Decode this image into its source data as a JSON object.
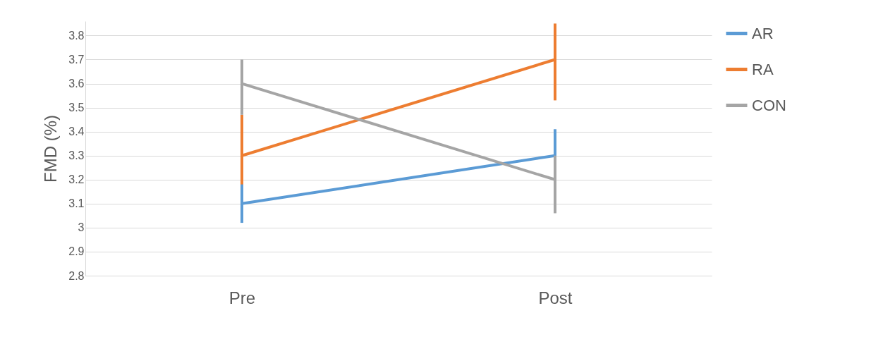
{
  "chart_data": {
    "type": "line",
    "ylabel": "FMD (%)",
    "categories": [
      "Pre",
      "Post"
    ],
    "series": [
      {
        "name": "AR",
        "color": "#5b9bd5",
        "values": [
          3.1,
          3.3
        ],
        "errors": [
          [
            3.02,
            3.2
          ],
          [
            3.2,
            3.41
          ]
        ]
      },
      {
        "name": "RA",
        "color": "#ed7d31",
        "values": [
          3.3,
          3.7
        ],
        "errors": [
          [
            3.18,
            3.47
          ],
          [
            3.53,
            3.85
          ]
        ]
      },
      {
        "name": "CON",
        "color": "#a5a5a5",
        "values": [
          3.6,
          3.2
        ],
        "errors": [
          [
            3.47,
            3.7
          ],
          [
            3.06,
            3.3
          ]
        ]
      }
    ],
    "ylim": [
      2.8,
      3.86
    ],
    "yticks": [
      2.8,
      2.9,
      3,
      3.1,
      3.2,
      3.3,
      3.4,
      3.5,
      3.6,
      3.7,
      3.8
    ],
    "grid": "y",
    "legend": "right",
    "marker": "none",
    "line_style": "solid"
  }
}
